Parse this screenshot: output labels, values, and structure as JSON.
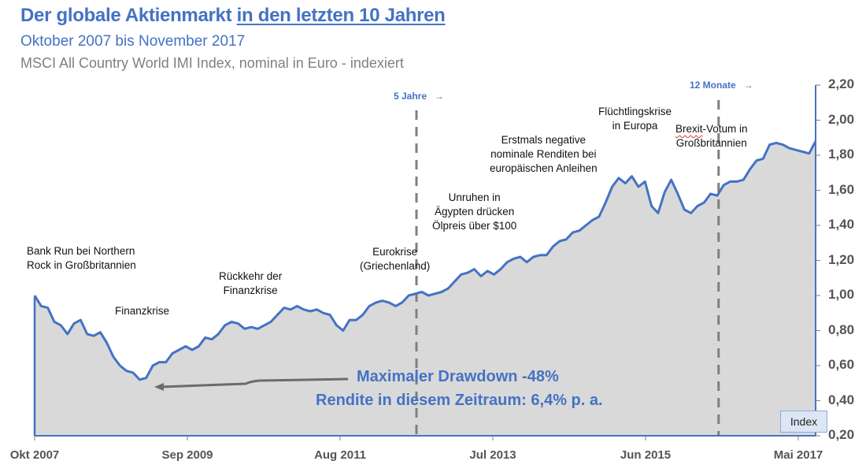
{
  "header": {
    "title_part1": "Der globale Aktienmarkt ",
    "title_part2": "in den letzten 10 Jahren",
    "subtitle": "Oktober 2007 bis November 2017",
    "source": "MSCI All Country World IMI Index, nominal in Euro - indexiert"
  },
  "markers": {
    "five_years": "5 Jahre",
    "twelve_months": "12 Monate",
    "arrow": "→"
  },
  "annotations": {
    "bank_run": [
      "Bank Run bei Northern",
      "Rock in Großbritannien"
    ],
    "finanzkrise": "Finanzkrise",
    "rueckkehr": [
      "Rückkehr der",
      "Finanzkrise"
    ],
    "eurokrise": [
      "Eurokrise",
      "(Griechenland)"
    ],
    "aegypten": [
      "Unruhen in",
      "Ägypten drücken",
      "Ölpreis über $100"
    ],
    "negative_renditen": [
      "Erstmals negative",
      "nominale Renditen bei",
      "europäischen Anleihen"
    ],
    "fluechtlinge": [
      "Flüchtlingskrise",
      "in Europa"
    ],
    "brexit_word": "Brexit",
    "brexit_rest": "-Votum in",
    "brexit_line2": "Großbritannien",
    "drawdown": "Maximaler Drawdown -48%",
    "rendite": "Rendite in diesem Zeitraum: 6,4% p. a."
  },
  "legend": {
    "label": "Index"
  },
  "colors": {
    "line": "#4472C4",
    "area": "#D9D9D9",
    "axis": "#4472C4",
    "dashed": "#7f7f7f",
    "arrow": "#6b6b6b"
  },
  "chart_data": {
    "type": "area",
    "title": "Der globale Aktienmarkt in den letzten 10 Jahren",
    "subtitle": "Oktober 2007 bis November 2017",
    "ylabel": "Index",
    "xlabel": "",
    "ylim": [
      0.2,
      2.2
    ],
    "y_ticks": [
      "0,20",
      "0,40",
      "0,60",
      "0,80",
      "1,00",
      "1,20",
      "1,40",
      "1,60",
      "1,80",
      "2,00",
      "2,20"
    ],
    "y_tick_values": [
      0.2,
      0.4,
      0.6,
      0.8,
      1.0,
      1.2,
      1.4,
      1.6,
      1.8,
      2.0,
      2.2
    ],
    "x_ticks": [
      {
        "label": "Okt 2007",
        "month_index": 0
      },
      {
        "label": "Sep 2009",
        "month_index": 23
      },
      {
        "label": "Aug 2011",
        "month_index": 46
      },
      {
        "label": "Jul 2013",
        "month_index": 69
      },
      {
        "label": "Jun 2015",
        "month_index": 92
      },
      {
        "label": "Mai 2017",
        "month_index": 115
      }
    ],
    "x_start": "Okt 2007",
    "x_end": "Nov 2017",
    "axis_position": "right",
    "grid": false,
    "legend": "bottom-right",
    "vlines": [
      {
        "label": "5 Jahre",
        "month_index": 57.5
      },
      {
        "label": "12 Monate",
        "month_index": 103
      }
    ],
    "series": [
      {
        "name": "MSCI ACWI IMI (EUR, indexiert)",
        "values": [
          1.0,
          0.94,
          0.93,
          0.85,
          0.83,
          0.78,
          0.84,
          0.86,
          0.78,
          0.77,
          0.79,
          0.73,
          0.65,
          0.6,
          0.57,
          0.56,
          0.52,
          0.53,
          0.6,
          0.62,
          0.62,
          0.67,
          0.69,
          0.71,
          0.69,
          0.71,
          0.76,
          0.75,
          0.78,
          0.83,
          0.85,
          0.84,
          0.81,
          0.82,
          0.81,
          0.83,
          0.85,
          0.89,
          0.93,
          0.92,
          0.94,
          0.92,
          0.91,
          0.92,
          0.9,
          0.89,
          0.83,
          0.8,
          0.86,
          0.86,
          0.89,
          0.94,
          0.96,
          0.97,
          0.96,
          0.94,
          0.96,
          1.0,
          1.01,
          1.02,
          1.0,
          1.01,
          1.02,
          1.04,
          1.08,
          1.12,
          1.13,
          1.15,
          1.11,
          1.14,
          1.12,
          1.15,
          1.19,
          1.21,
          1.22,
          1.19,
          1.22,
          1.23,
          1.23,
          1.28,
          1.31,
          1.32,
          1.36,
          1.37,
          1.4,
          1.43,
          1.45,
          1.53,
          1.62,
          1.67,
          1.64,
          1.68,
          1.62,
          1.65,
          1.51,
          1.47,
          1.59,
          1.66,
          1.58,
          1.49,
          1.47,
          1.51,
          1.53,
          1.58,
          1.57,
          1.63,
          1.65,
          1.65,
          1.66,
          1.72,
          1.77,
          1.78,
          1.86,
          1.87,
          1.86,
          1.84,
          1.83,
          1.82,
          1.81,
          1.88
        ]
      }
    ]
  }
}
